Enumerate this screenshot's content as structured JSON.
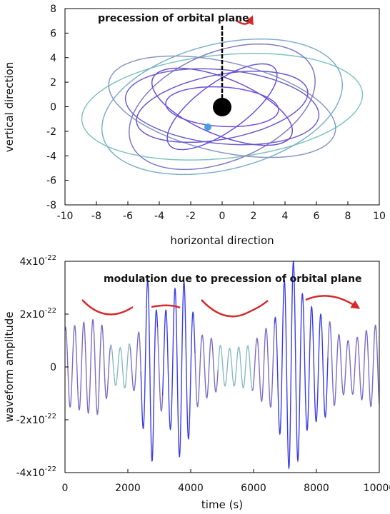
{
  "chart_data": [
    {
      "type": "line",
      "title": "",
      "xlabel": "horizontal direction",
      "ylabel": "vertical direction",
      "xlim": [
        -10,
        10
      ],
      "ylim": [
        -8,
        8
      ],
      "x_ticks": [
        -10,
        -8,
        -6,
        -4,
        -2,
        0,
        2,
        4,
        6,
        8,
        10
      ],
      "y_ticks": [
        -8,
        -6,
        -4,
        -2,
        0,
        2,
        4,
        6,
        8
      ],
      "x_tick_labels": [
        "-10",
        "-8",
        "-6",
        "-4",
        "-2",
        "0",
        "2",
        "4",
        "6",
        "8",
        "10"
      ],
      "y_tick_labels": [
        "-8",
        "-6",
        "-4",
        "-2",
        "0",
        "2",
        "4",
        "6",
        "8"
      ],
      "grid": false,
      "annotation": "precession of orbital plane",
      "orbits": [
        {
          "a": 9.0,
          "b": 4.2,
          "angle_deg": 8
        },
        {
          "a": 8.0,
          "b": 5.0,
          "angle_deg": 22
        },
        {
          "a": 7.5,
          "b": 3.6,
          "angle_deg": -18
        },
        {
          "a": 6.6,
          "b": 4.2,
          "angle_deg": 35
        },
        {
          "a": 6.2,
          "b": 3.0,
          "angle_deg": -8
        },
        {
          "a": 5.6,
          "b": 2.6,
          "angle_deg": 15
        },
        {
          "a": 5.0,
          "b": 2.2,
          "angle_deg": -30
        },
        {
          "a": 4.6,
          "b": 1.8,
          "angle_deg": 45
        },
        {
          "a": 3.6,
          "b": 1.6,
          "angle_deg": -5
        }
      ],
      "orbit_colors": [
        "#7ec4c0",
        "#7fb0c8",
        "#8a96c6",
        "#7f7cc4",
        "#7063c8",
        "#6b58cc",
        "#6a50d0",
        "#6a55d8",
        "#7050e0"
      ],
      "central_body": {
        "x": 0,
        "y": 0
      },
      "companion": {
        "x": -0.9,
        "y": -1.6
      }
    },
    {
      "type": "line",
      "title": "",
      "xlabel": "time (s)",
      "ylabel": "waveform amplitude",
      "xlim": [
        0,
        10000
      ],
      "ylim": [
        -4e-22,
        4e-22
      ],
      "x_ticks": [
        0,
        2000,
        4000,
        6000,
        8000,
        10000
      ],
      "x_tick_labels": [
        "0",
        "2000",
        "4000",
        "6000",
        "8000",
        "10000"
      ],
      "y_ticks": [
        4e-22,
        2e-22,
        0,
        -2e-22,
        -4e-22
      ],
      "y_tick_labels": [
        {
          "base": "4x10",
          "exp": "-22"
        },
        {
          "base": "2x10",
          "exp": "-22"
        },
        {
          "base": "0",
          "exp": ""
        },
        {
          "base": "-2x10",
          "exp": "-22"
        },
        {
          "base": "-4x10",
          "exp": "-22"
        }
      ],
      "grid": false,
      "annotation": "modulation due to precession of orbital plane",
      "waveform": {
        "carrier_period_s": 290,
        "envelope_peaks": [
          {
            "t": 0,
            "amp": 1.5e-22
          },
          {
            "t": 1000,
            "amp": 1.8e-22
          },
          {
            "t": 1600,
            "amp": 7e-23
          },
          {
            "t": 2200,
            "amp": 9e-23
          },
          {
            "t": 2750,
            "amp": 3.6e-22
          },
          {
            "t": 3000,
            "amp": 1.6e-22
          },
          {
            "t": 3300,
            "amp": 2.3e-22
          },
          {
            "t": 3650,
            "amp": 3.4e-22
          },
          {
            "t": 4400,
            "amp": 1.2e-22
          },
          {
            "t": 5200,
            "amp": 7e-23
          },
          {
            "t": 5800,
            "amp": 8e-23
          },
          {
            "t": 6500,
            "amp": 1.5e-22
          },
          {
            "t": 7250,
            "amp": 4e-22
          },
          {
            "t": 7700,
            "amp": 2.4e-22
          },
          {
            "t": 8100,
            "amp": 2e-22
          },
          {
            "t": 9000,
            "amp": 1e-22
          },
          {
            "t": 10000,
            "amp": 1.6e-22
          }
        ],
        "colors": {
          "low": "#88bcc0",
          "mid": "#7b6fc8",
          "high": "#3d3fe6"
        }
      }
    }
  ]
}
